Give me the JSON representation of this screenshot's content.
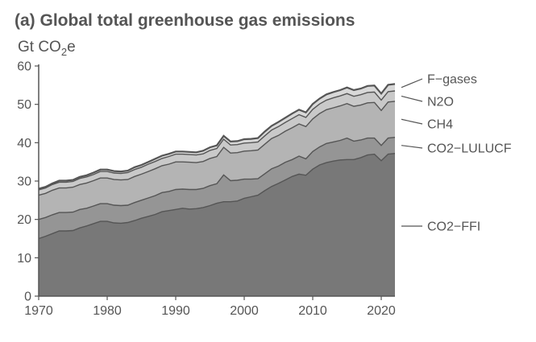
{
  "title": "(a) Global total greenhouse gas emissions",
  "unit": {
    "prefix": "Gt CO",
    "sub": "2",
    "suffix": "e"
  },
  "colors": {
    "CO2-FFI": "#787878",
    "CO2-LULUCF": "#959595",
    "CH4": "#b4b4b4",
    "N2O": "#c9c9c9",
    "F-gases": "#d8d8d8",
    "boundary": "#555555"
  },
  "chart_data": {
    "type": "area",
    "stacked": true,
    "x": [
      1970,
      1971,
      1972,
      1973,
      1974,
      1975,
      1976,
      1977,
      1978,
      1979,
      1980,
      1981,
      1982,
      1983,
      1984,
      1985,
      1986,
      1987,
      1988,
      1989,
      1990,
      1991,
      1992,
      1993,
      1994,
      1995,
      1996,
      1997,
      1998,
      1999,
      2000,
      2001,
      2002,
      2003,
      2004,
      2005,
      2006,
      2007,
      2008,
      2009,
      2010,
      2011,
      2012,
      2013,
      2014,
      2015,
      2016,
      2017,
      2018,
      2019,
      2020,
      2021,
      2022
    ],
    "series": [
      {
        "name": "CO2−FFI",
        "values": [
          15.0,
          15.6,
          16.3,
          17.0,
          17.0,
          17.1,
          17.8,
          18.3,
          18.9,
          19.5,
          19.5,
          19.1,
          19.0,
          19.2,
          19.7,
          20.3,
          20.8,
          21.3,
          22.0,
          22.3,
          22.6,
          22.9,
          22.7,
          22.8,
          23.1,
          23.6,
          24.2,
          24.6,
          24.6,
          24.8,
          25.5,
          25.9,
          26.3,
          27.5,
          28.6,
          29.4,
          30.3,
          31.2,
          31.8,
          31.5,
          33.1,
          34.2,
          34.8,
          35.2,
          35.5,
          35.6,
          35.6,
          36.1,
          36.8,
          37.0,
          35.3,
          37.0,
          37.2
        ]
      },
      {
        "name": "CO2−LULUCF",
        "values": [
          5.0,
          4.9,
          4.9,
          4.8,
          4.8,
          4.8,
          4.8,
          4.6,
          4.6,
          4.6,
          4.6,
          4.6,
          4.6,
          4.5,
          4.7,
          4.7,
          4.8,
          4.9,
          5.0,
          5.0,
          5.2,
          5.0,
          5.1,
          5.0,
          5.0,
          5.2,
          5.1,
          7.0,
          5.5,
          5.4,
          5.0,
          4.6,
          4.3,
          4.4,
          4.6,
          4.5,
          4.6,
          4.4,
          4.7,
          4.3,
          4.6,
          4.7,
          5.0,
          5.0,
          5.1,
          5.6,
          4.8,
          4.6,
          4.4,
          4.2,
          4.0,
          4.2,
          4.2
        ]
      },
      {
        "name": "CH4",
        "values": [
          6.3,
          6.3,
          6.4,
          6.4,
          6.4,
          6.5,
          6.5,
          6.6,
          6.6,
          6.7,
          6.7,
          6.7,
          6.7,
          6.7,
          6.8,
          6.8,
          6.9,
          7.0,
          7.0,
          7.1,
          7.2,
          7.1,
          7.1,
          7.0,
          7.0,
          7.1,
          7.1,
          7.2,
          7.2,
          7.2,
          7.3,
          7.4,
          7.5,
          7.7,
          7.9,
          8.0,
          8.1,
          8.3,
          8.4,
          8.4,
          8.5,
          8.7,
          8.8,
          8.9,
          9.0,
          9.0,
          9.1,
          9.1,
          9.2,
          9.3,
          9.1,
          9.4,
          9.4
        ]
      },
      {
        "name": "N2O",
        "values": [
          1.4,
          1.4,
          1.5,
          1.5,
          1.5,
          1.5,
          1.6,
          1.6,
          1.6,
          1.7,
          1.7,
          1.7,
          1.7,
          1.8,
          1.8,
          1.8,
          1.9,
          1.9,
          1.9,
          2.0,
          2.0,
          2.0,
          2.0,
          2.0,
          2.0,
          2.1,
          2.1,
          2.1,
          2.1,
          2.1,
          2.1,
          2.1,
          2.1,
          2.2,
          2.2,
          2.3,
          2.3,
          2.4,
          2.4,
          2.4,
          2.5,
          2.5,
          2.5,
          2.6,
          2.6,
          2.6,
          2.6,
          2.7,
          2.7,
          2.7,
          2.7,
          2.7,
          2.7
        ]
      },
      {
        "name": "F−gases",
        "values": [
          0.3,
          0.3,
          0.3,
          0.4,
          0.4,
          0.4,
          0.4,
          0.4,
          0.5,
          0.5,
          0.5,
          0.5,
          0.5,
          0.5,
          0.6,
          0.6,
          0.6,
          0.7,
          0.7,
          0.7,
          0.7,
          0.7,
          0.7,
          0.7,
          0.8,
          0.8,
          0.8,
          0.9,
          0.9,
          0.9,
          1.0,
          1.0,
          1.0,
          1.1,
          1.1,
          1.2,
          1.2,
          1.3,
          1.3,
          1.3,
          1.4,
          1.4,
          1.5,
          1.5,
          1.5,
          1.6,
          1.6,
          1.6,
          1.7,
          1.7,
          1.7,
          1.8,
          1.8
        ]
      }
    ],
    "legend_labels": [
      "F−gases",
      "N2O",
      "CH4",
      "CO2−LULUCF",
      "CO2−FFI"
    ],
    "xlim": [
      1970,
      2022
    ],
    "ylim": [
      0,
      60
    ],
    "xticks": [
      "1970",
      "1980",
      "1990",
      "2000",
      "2010",
      "2020"
    ],
    "yticks": [
      "0",
      "10",
      "20",
      "30",
      "40",
      "50",
      "60"
    ],
    "grid": false,
    "legend": "right, direct labels"
  }
}
